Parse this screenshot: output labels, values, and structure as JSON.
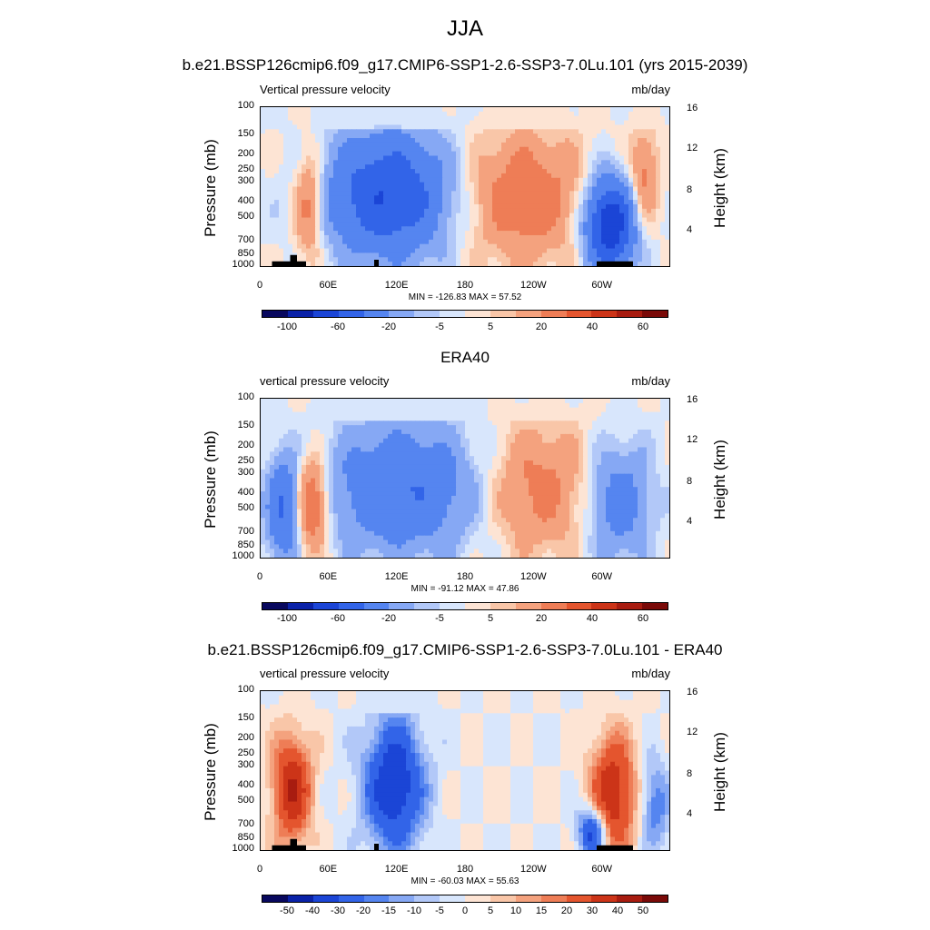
{
  "figure": {
    "title": "JJA"
  },
  "panels": [
    {
      "title": "b.e21.BSSP126cmip6.f09_g17.CMIP6-SSP1-2.6-SSP3-7.0Lu.101 (yrs 2015-2039)",
      "variable": "Vertical pressure velocity",
      "units": "mb/day",
      "ylabel": "Pressure (mb)",
      "ylabel_right": "Height (km)",
      "stats": "MIN = -126.83  MAX =  57.52",
      "colorbar_labels": [
        "-100",
        "-60",
        "-20",
        "-5",
        "5",
        "20",
        "40",
        "60"
      ]
    },
    {
      "title": "ERA40",
      "variable": "vertical pressure velocity",
      "units": "mb/day",
      "ylabel": "Pressure (mb)",
      "ylabel_right": "Height (km)",
      "stats": "MIN = -91.12  MAX =  47.86",
      "colorbar_labels": [
        "-100",
        "-60",
        "-20",
        "-5",
        "5",
        "20",
        "40",
        "60"
      ]
    },
    {
      "title": "b.e21.BSSP126cmip6.f09_g17.CMIP6-SSP1-2.6-SSP3-7.0Lu.101 - ERA40",
      "variable": "vertical pressure velocity",
      "units": "mb/day",
      "ylabel": "Pressure (mb)",
      "ylabel_right": "Height (km)",
      "stats": "MIN = -60.03  MAX =  55.63",
      "colorbar_labels": [
        "-50",
        "-40",
        "-30",
        "-20",
        "-15",
        "-10",
        "-5",
        "0",
        "5",
        "10",
        "15",
        "20",
        "30",
        "40",
        "50"
      ]
    }
  ],
  "axes": {
    "pressure_ticks": [
      "100",
      "150",
      "200",
      "250",
      "300",
      "400",
      "500",
      "700",
      "850",
      "1000"
    ],
    "height_ticks": [
      "16",
      "12",
      "8",
      "4"
    ],
    "x_ticks": [
      "0",
      "60E",
      "120E",
      "180",
      "120W",
      "60W"
    ]
  },
  "colors": {
    "ramp16": [
      "#08085e",
      "#0a22a8",
      "#1b45d6",
      "#3264e8",
      "#5585f0",
      "#86a8f4",
      "#b2c8f8",
      "#d8e6fc",
      "#fde4d4",
      "#f9c6a8",
      "#f4a27e",
      "#ee7d56",
      "#e4552e",
      "#cc3418",
      "#a81c10",
      "#7a0a08"
    ],
    "ramp16_diff": [
      "#08085e",
      "#0a22a8",
      "#1b45d6",
      "#3264e8",
      "#5585f0",
      "#86a8f4",
      "#b2c8f8",
      "#d8e6fc",
      "#fde4d4",
      "#f9c6a8",
      "#f4a27e",
      "#ee7d56",
      "#e4552e",
      "#cc3418",
      "#a81c10",
      "#7a0a08"
    ]
  },
  "chart_data": [
    {
      "type": "heatmap",
      "title": "b.e21.BSSP126cmip6.f09_g17.CMIP6-SSP1-2.6-SSP3-7.0Lu.101 (yrs 2015-2039)",
      "field": "Vertical pressure velocity",
      "units": "mb/day",
      "x": "longitude 0-360",
      "y": "pressure 1000-100 mb (log)",
      "min": -126.83,
      "max": 57.52,
      "contour_levels": [
        -100,
        -80,
        -60,
        -40,
        -20,
        -10,
        -5,
        0,
        5,
        10,
        20,
        30,
        40,
        50,
        60
      ],
      "features": [
        {
          "lon": [
            60,
            165
          ],
          "p": [
            150,
            850
          ],
          "value": -60
        },
        {
          "lon": [
            180,
            285
          ],
          "p": [
            150,
            900
          ],
          "value": 30
        },
        {
          "lon": [
            290,
            325
          ],
          "p": [
            300,
            1000
          ],
          "value": -80
        },
        {
          "lon": [
            35,
            50
          ],
          "p": [
            200,
            850
          ],
          "value": 30
        },
        {
          "lon": [
            330,
            345
          ],
          "p": [
            150,
            500
          ],
          "value": 25
        }
      ]
    },
    {
      "type": "heatmap",
      "title": "ERA40",
      "field": "vertical pressure velocity",
      "units": "mb/day",
      "min": -91.12,
      "max": 47.86,
      "contour_levels": [
        -100,
        -80,
        -60,
        -40,
        -20,
        -10,
        -5,
        0,
        5,
        10,
        20,
        30,
        40,
        50,
        60
      ],
      "features": [
        {
          "lon": [
            60,
            190
          ],
          "p": [
            150,
            900
          ],
          "value": -40
        },
        {
          "lon": [
            200,
            290
          ],
          "p": [
            150,
            900
          ],
          "value": 25
        },
        {
          "lon": [
            35,
            55
          ],
          "p": [
            250,
            850
          ],
          "value": 40
        },
        {
          "lon": [
            10,
            30
          ],
          "p": [
            250,
            1000
          ],
          "value": -40
        },
        {
          "lon": [
            290,
            340
          ],
          "p": [
            200,
            1000
          ],
          "value": -30
        }
      ]
    },
    {
      "type": "heatmap",
      "title": "b.e21.BSSP126cmip6.f09_g17.CMIP6-SSP1-2.6-SSP3-7.0Lu.101 - ERA40",
      "field": "vertical pressure velocity",
      "units": "mb/day",
      "min": -60.03,
      "max": 55.63,
      "contour_levels": [
        -50,
        -40,
        -30,
        -20,
        -15,
        -10,
        -5,
        0,
        5,
        10,
        15,
        20,
        30,
        40,
        50
      ],
      "features": [
        {
          "lon": [
            15,
            40
          ],
          "p": [
            200,
            850
          ],
          "value": 40
        },
        {
          "lon": [
            95,
            140
          ],
          "p": [
            150,
            1000
          ],
          "value": -40
        },
        {
          "lon": [
            295,
            325
          ],
          "p": [
            200,
            1000
          ],
          "value": 40
        },
        {
          "lon": [
            285,
            300
          ],
          "p": [
            600,
            1000
          ],
          "value": -40
        },
        {
          "lon": [
            340,
            355
          ],
          "p": [
            300,
            900
          ],
          "value": -20
        }
      ]
    }
  ]
}
